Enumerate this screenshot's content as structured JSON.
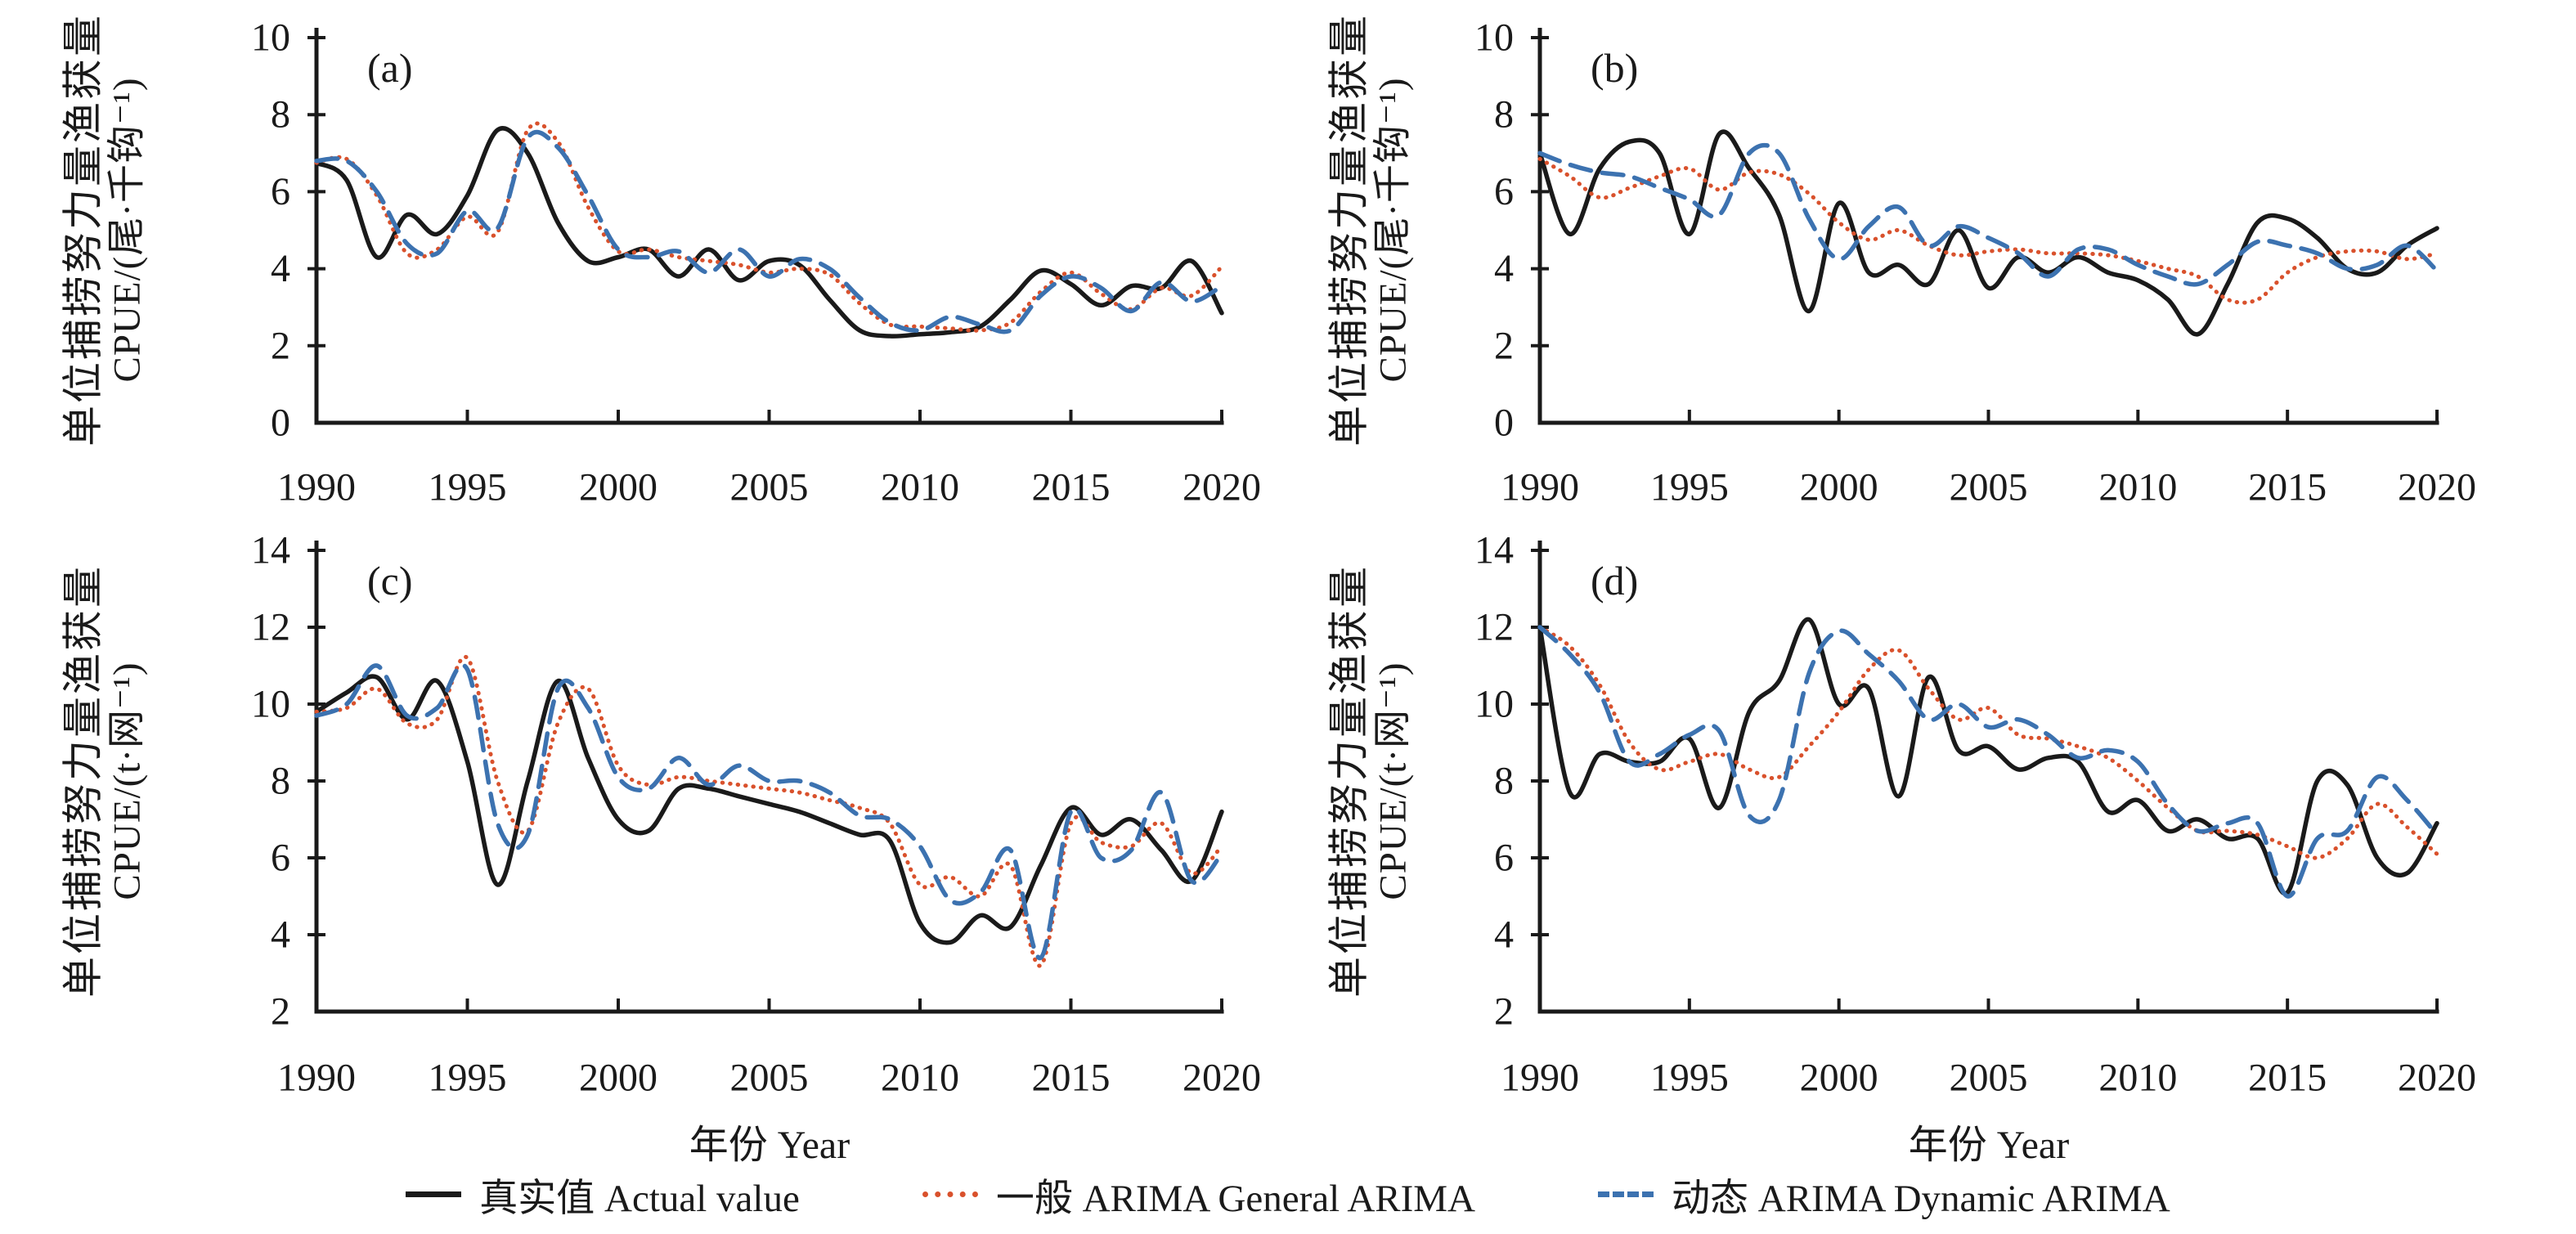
{
  "figure_title": "",
  "years": [
    1990,
    1991,
    1992,
    1993,
    1994,
    1995,
    1996,
    1997,
    1998,
    1999,
    2000,
    2001,
    2002,
    2003,
    2004,
    2005,
    2006,
    2007,
    2008,
    2009,
    2010,
    2011,
    2012,
    2013,
    2014,
    2015,
    2016,
    2017,
    2018,
    2019,
    2020
  ],
  "colors": {
    "actual": "#1a1a1a",
    "general_arima": "#d9512c",
    "dynamic_arima": "#3c72b0"
  },
  "legend": {
    "items": [
      {
        "label": "真实值 Actual value",
        "style": "solid",
        "color": "#1a1a1a"
      },
      {
        "label": "一般 ARIMA General ARIMA",
        "style": "dotted",
        "color": "#d9512c"
      },
      {
        "label": "动态 ARIMA Dynamic ARIMA",
        "style": "dashed",
        "color": "#3c72b0"
      }
    ]
  },
  "chart_data": [
    {
      "type": "line",
      "tag": "(a)",
      "ylabel_cn": "单位捕捞努力量渔获量",
      "ylabel_unit": "CPUE/(尾·千钩⁻¹)",
      "xlabel": "",
      "xticks": [
        1990,
        1995,
        2000,
        2005,
        2010,
        2015,
        2020
      ],
      "ylim": [
        0,
        10
      ],
      "yticks": [
        0,
        2,
        4,
        6,
        8,
        10
      ],
      "grid": false,
      "series": [
        {
          "name": "真实值 Actual value",
          "style": "solid",
          "color": "#1a1a1a",
          "values": [
            6.75,
            6.3,
            4.3,
            5.4,
            4.9,
            5.9,
            7.6,
            7.0,
            5.2,
            4.2,
            4.3,
            4.5,
            3.8,
            4.5,
            3.7,
            4.2,
            4.1,
            3.2,
            2.4,
            2.25,
            2.3,
            2.35,
            2.5,
            3.2,
            3.95,
            3.6,
            3.05,
            3.55,
            3.5,
            4.2,
            2.85
          ]
        },
        {
          "name": "一般 ARIMA General ARIMA",
          "style": "dotted",
          "color": "#d9512c",
          "values": [
            6.75,
            6.85,
            5.9,
            4.4,
            4.5,
            5.35,
            4.95,
            7.6,
            7.3,
            5.6,
            4.45,
            4.5,
            4.3,
            4.2,
            4.1,
            3.9,
            4.0,
            3.85,
            3.1,
            2.55,
            2.5,
            2.45,
            2.4,
            2.6,
            3.4,
            3.9,
            3.35,
            2.95,
            3.5,
            3.3,
            4.05
          ]
        },
        {
          "name": "动态 ARIMA Dynamic ARIMA",
          "style": "dashed",
          "color": "#3c72b0",
          "values": [
            6.8,
            6.8,
            6.0,
            4.65,
            4.4,
            5.5,
            5.05,
            7.4,
            7.15,
            5.9,
            4.5,
            4.3,
            4.45,
            3.9,
            4.5,
            3.8,
            4.25,
            4.0,
            3.25,
            2.6,
            2.4,
            2.75,
            2.55,
            2.4,
            3.3,
            3.8,
            3.5,
            2.9,
            3.65,
            3.15,
            3.55
          ]
        }
      ]
    },
    {
      "type": "line",
      "tag": "(b)",
      "ylabel_cn": "单位捕捞努力量渔获量",
      "ylabel_unit": "CPUE/(尾·千钩⁻¹)",
      "xlabel": "",
      "xticks": [
        1990,
        1995,
        2000,
        2005,
        2010,
        2015,
        2020
      ],
      "ylim": [
        0,
        10
      ],
      "yticks": [
        0,
        2,
        4,
        6,
        8,
        10
      ],
      "grid": false,
      "series": [
        {
          "name": "真实值 Actual value",
          "style": "solid",
          "color": "#1a1a1a",
          "values": [
            7.0,
            4.9,
            6.6,
            7.3,
            7.0,
            4.9,
            7.5,
            6.6,
            5.4,
            2.9,
            5.7,
            3.9,
            4.1,
            3.6,
            5.0,
            3.5,
            4.3,
            3.9,
            4.3,
            3.9,
            3.7,
            3.2,
            2.3,
            3.6,
            5.2,
            5.3,
            4.8,
            4.0,
            3.9,
            4.6,
            5.05
          ]
        },
        {
          "name": "一般 ARIMA General ARIMA",
          "style": "dotted",
          "color": "#d9512c",
          "values": [
            6.85,
            6.4,
            5.85,
            6.1,
            6.4,
            6.6,
            6.05,
            6.5,
            6.45,
            5.95,
            5.2,
            4.75,
            5.0,
            4.6,
            4.35,
            4.45,
            4.5,
            4.4,
            4.4,
            4.35,
            4.2,
            4.0,
            3.8,
            3.2,
            3.2,
            3.9,
            4.3,
            4.45,
            4.45,
            4.25,
            4.4
          ]
        },
        {
          "name": "动态 ARIMA Dynamic ARIMA",
          "style": "dashed",
          "color": "#3c72b0",
          "values": [
            7.0,
            6.7,
            6.5,
            6.4,
            6.1,
            5.8,
            5.4,
            7.0,
            7.0,
            5.3,
            4.25,
            5.1,
            5.6,
            4.6,
            5.1,
            4.8,
            4.4,
            3.8,
            4.5,
            4.5,
            4.1,
            3.8,
            3.6,
            4.1,
            4.7,
            4.6,
            4.4,
            4.0,
            4.1,
            4.6,
            3.95
          ]
        }
      ]
    },
    {
      "type": "line",
      "tag": "(c)",
      "ylabel_cn": "单位捕捞努力量渔获量",
      "ylabel_unit": "CPUE/(t·网⁻¹)",
      "xlabel": "年份 Year",
      "xticks": [
        1990,
        1995,
        2000,
        2005,
        2010,
        2015,
        2020
      ],
      "ylim": [
        2,
        14
      ],
      "yticks": [
        2,
        4,
        6,
        8,
        10,
        12,
        14
      ],
      "grid": false,
      "series": [
        {
          "name": "真实值 Actual value",
          "style": "solid",
          "color": "#1a1a1a",
          "values": [
            9.8,
            10.3,
            10.7,
            9.6,
            10.6,
            8.5,
            5.3,
            8.0,
            10.6,
            8.6,
            7.0,
            6.7,
            7.8,
            7.8,
            7.6,
            7.4,
            7.2,
            6.9,
            6.6,
            6.45,
            4.3,
            3.8,
            4.5,
            4.2,
            5.8,
            7.3,
            6.6,
            7.0,
            6.2,
            5.4,
            7.2
          ]
        },
        {
          "name": "一般 ARIMA General ARIMA",
          "style": "dotted",
          "color": "#d9512c",
          "values": [
            9.8,
            9.9,
            10.4,
            9.5,
            9.6,
            11.2,
            8.0,
            6.7,
            9.5,
            10.4,
            8.4,
            7.9,
            8.1,
            8.0,
            7.9,
            7.8,
            7.7,
            7.5,
            7.3,
            6.9,
            5.3,
            5.5,
            5.0,
            5.8,
            3.2,
            6.9,
            6.4,
            6.3,
            6.9,
            5.6,
            6.3
          ]
        },
        {
          "name": "动态 ARIMA Dynamic ARIMA",
          "style": "dashed",
          "color": "#3c72b0",
          "values": [
            9.7,
            10.0,
            11.0,
            9.7,
            9.9,
            10.9,
            6.9,
            6.6,
            10.4,
            9.9,
            8.1,
            7.8,
            8.6,
            7.9,
            8.4,
            8.0,
            8.0,
            7.7,
            7.1,
            7.0,
            6.3,
            4.9,
            5.1,
            6.2,
            3.4,
            7.2,
            6.0,
            6.2,
            7.7,
            5.4,
            6.1
          ]
        }
      ]
    },
    {
      "type": "line",
      "tag": "(d)",
      "ylabel_cn": "单位捕捞努力量渔获量",
      "ylabel_unit": "CPUE/(t·网⁻¹)",
      "xlabel": "年份 Year",
      "xticks": [
        1990,
        1995,
        2000,
        2005,
        2010,
        2015,
        2020
      ],
      "ylim": [
        2,
        14
      ],
      "yticks": [
        2,
        4,
        6,
        8,
        10,
        12,
        14
      ],
      "grid": false,
      "series": [
        {
          "name": "真实值 Actual value",
          "style": "solid",
          "color": "#1a1a1a",
          "values": [
            12.0,
            7.7,
            8.7,
            8.5,
            8.5,
            9.1,
            7.3,
            9.8,
            10.6,
            12.2,
            10.0,
            10.4,
            7.6,
            10.7,
            8.8,
            8.9,
            8.3,
            8.6,
            8.5,
            7.2,
            7.5,
            6.7,
            7.0,
            6.5,
            6.5,
            5.1,
            8.0,
            7.9,
            6.0,
            5.6,
            6.9
          ]
        },
        {
          "name": "一般 ARIMA General ARIMA",
          "style": "dotted",
          "color": "#d9512c",
          "values": [
            12.0,
            11.5,
            10.5,
            9.0,
            8.3,
            8.5,
            8.7,
            8.3,
            8.1,
            8.9,
            9.8,
            10.9,
            11.4,
            10.4,
            9.6,
            9.9,
            9.2,
            9.1,
            8.9,
            8.6,
            8.0,
            7.3,
            6.7,
            6.7,
            6.6,
            6.3,
            6.0,
            6.5,
            7.4,
            6.8,
            6.1
          ]
        },
        {
          "name": "动态 ARIMA Dynamic ARIMA",
          "style": "dashed",
          "color": "#3c72b0",
          "values": [
            12.0,
            11.3,
            10.3,
            8.5,
            8.7,
            9.2,
            9.3,
            7.1,
            7.5,
            10.8,
            11.9,
            11.3,
            10.6,
            9.6,
            10.0,
            9.4,
            9.6,
            9.2,
            8.6,
            8.8,
            8.5,
            7.4,
            6.7,
            6.9,
            6.9,
            5.0,
            6.5,
            6.7,
            8.1,
            7.5,
            6.6
          ]
        }
      ]
    }
  ]
}
